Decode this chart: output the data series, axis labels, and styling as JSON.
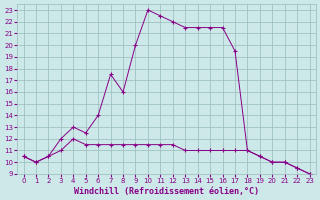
{
  "xlabel": "Windchill (Refroidissement éolien,°C)",
  "bg_color": "#cce8e8",
  "line_color": "#880088",
  "xlim": [
    -0.5,
    23.5
  ],
  "ylim": [
    9,
    23.5
  ],
  "xticks": [
    0,
    1,
    2,
    3,
    4,
    5,
    6,
    7,
    8,
    9,
    10,
    11,
    12,
    13,
    14,
    15,
    16,
    17,
    18,
    19,
    20,
    21,
    22,
    23
  ],
  "yticks": [
    9,
    10,
    11,
    12,
    13,
    14,
    15,
    16,
    17,
    18,
    19,
    20,
    21,
    22,
    23
  ],
  "line1_x": [
    0,
    1,
    2,
    3,
    4,
    5,
    6,
    7,
    8,
    9,
    10,
    11,
    12,
    13,
    14,
    15,
    16,
    17,
    18,
    19,
    20,
    21,
    22,
    23
  ],
  "line1_y": [
    10.5,
    10.0,
    10.5,
    12.0,
    13.0,
    12.5,
    14.0,
    17.5,
    16.0,
    20.0,
    23.0,
    22.5,
    22.0,
    21.5,
    21.5,
    21.5,
    21.5,
    19.5,
    11.0,
    10.5,
    10.0,
    10.0,
    9.5,
    9.0
  ],
  "line2_x": [
    0,
    1,
    2,
    3,
    4,
    5,
    6,
    7,
    8,
    9,
    10,
    11,
    12,
    13,
    14,
    15,
    16,
    17,
    18,
    19,
    20,
    21,
    22,
    23
  ],
  "line2_y": [
    10.5,
    10.0,
    10.5,
    11.0,
    12.0,
    11.5,
    11.5,
    11.5,
    11.5,
    11.5,
    11.5,
    11.5,
    11.5,
    11.0,
    11.0,
    11.0,
    11.0,
    11.0,
    11.0,
    10.5,
    10.0,
    10.0,
    9.5,
    9.0
  ],
  "grid_color": "#99bbbb",
  "tick_fontsize": 5.0,
  "xlabel_fontsize": 6.0,
  "linewidth": 0.7,
  "markersize": 2.5
}
